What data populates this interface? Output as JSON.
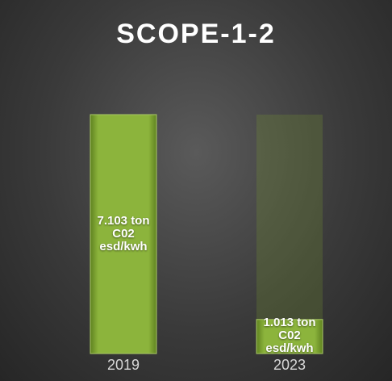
{
  "chart_data": {
    "type": "bar",
    "title": "SCOPE-1-2",
    "categories": [
      "2019",
      "2023"
    ],
    "values": [
      7.103,
      1.013
    ],
    "value_labels": [
      "7.103 ton C02 esd/kwh",
      "1.013 ton C02 esd/kwh"
    ],
    "color": "#7fa52e"
  }
}
